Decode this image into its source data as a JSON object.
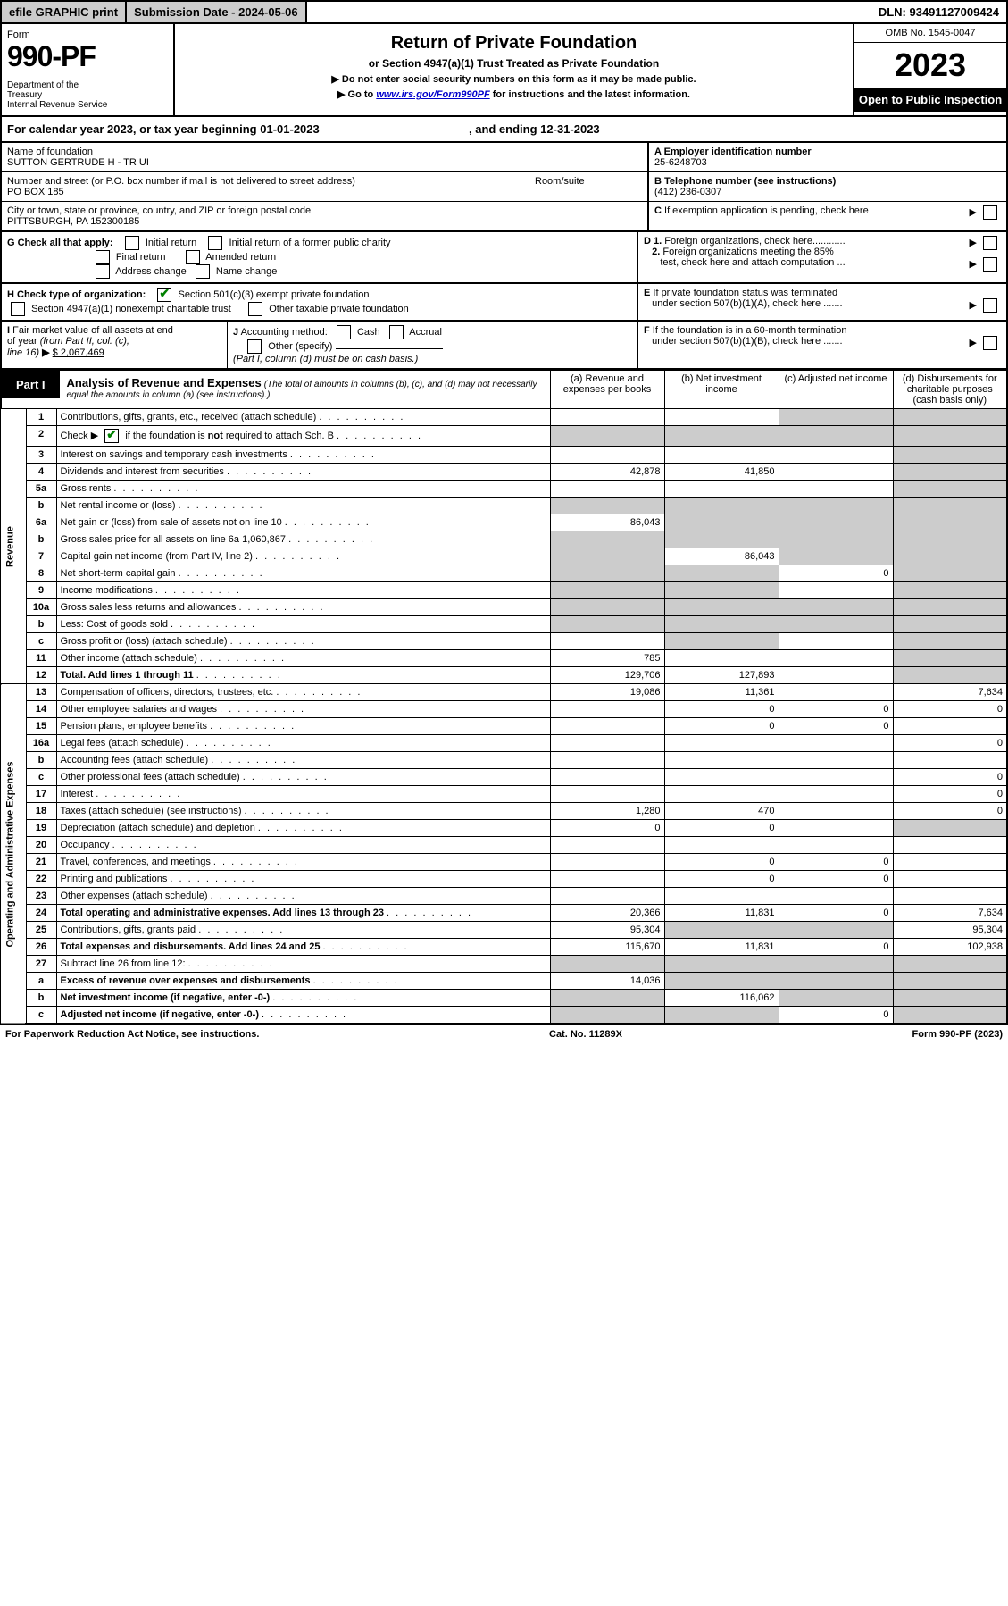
{
  "topbar": {
    "efile": "efile GRAPHIC print",
    "submission_label": "Submission Date - ",
    "submission_date": "2024-05-06",
    "dln_label": "DLN: ",
    "dln": "93491127009424"
  },
  "header": {
    "form_label": "Form",
    "form_number": "990-PF",
    "dept": "Department of the Treasury\nInternal Revenue Service",
    "title": "Return of Private Foundation",
    "subtitle": "or Section 4947(a)(1) Trust Treated as Private Foundation",
    "note1": "▶ Do not enter social security numbers on this form as it may be made public.",
    "note2_pre": "▶ Go to ",
    "note2_link": "www.irs.gov/Form990PF",
    "note2_post": " for instructions and the latest information.",
    "omb": "OMB No. 1545-0047",
    "year": "2023",
    "inspect": "Open to Public Inspection"
  },
  "calyear": {
    "text_a": "For calendar year 2023, or tax year beginning ",
    "begin": "01-01-2023",
    "text_b": ", and ending ",
    "end": "12-31-2023"
  },
  "info": {
    "name_label": "Name of foundation",
    "name": "SUTTON GERTRUDE H - TR UI",
    "ein_label": "A Employer identification number",
    "ein": "25-6248703",
    "addr_label": "Number and street (or P.O. box number if mail is not delivered to street address)",
    "room_label": "Room/suite",
    "addr": "PO BOX 185",
    "phone_label": "B Telephone number (see instructions)",
    "phone": "(412) 236-0307",
    "city_label": "City or town, state or province, country, and ZIP or foreign postal code",
    "city": "PITTSBURGH, PA  152300185",
    "c_label": "C If exemption application is pending, check here"
  },
  "sectionG": {
    "label": "G Check all that apply:",
    "opts": [
      "Initial return",
      "Initial return of a former public charity",
      "Final return",
      "Amended return",
      "Address change",
      "Name change"
    ]
  },
  "sectionD": {
    "d1": "D 1. Foreign organizations, check here............",
    "d2": "2. Foreign organizations meeting the 85% test, check here and attach computation ..."
  },
  "sectionH": {
    "label": "H Check type of organization:",
    "opt1": "Section 501(c)(3) exempt private foundation",
    "opt2": "Section 4947(a)(1) nonexempt charitable trust",
    "opt3": "Other taxable private foundation"
  },
  "sectionE": {
    "label": "E If private foundation status was terminated under section 507(b)(1)(A), check here ......."
  },
  "sectionI": {
    "label": "I Fair market value of all assets at end of year (from Part II, col. (c), line 16)",
    "arrow": "▶",
    "val": "$ 2,067,469"
  },
  "sectionJ": {
    "label": "J Accounting method:",
    "opt1": "Cash",
    "opt2": "Accrual",
    "opt3": "Other (specify)",
    "note": "(Part I, column (d) must be on cash basis.)"
  },
  "sectionF": {
    "label": "F If the foundation is in a 60-month termination under section 507(b)(1)(B), check here ......."
  },
  "part1": {
    "label": "Part I",
    "title": "Analysis of Revenue and Expenses",
    "note": "(The total of amounts in columns (b), (c), and (d) may not necessarily equal the amounts in column (a) (see instructions).)",
    "col_a": "(a) Revenue and expenses per books",
    "col_b": "(b) Net investment income",
    "col_c": "(c) Adjusted net income",
    "col_d": "(d) Disbursements for charitable purposes (cash basis only)"
  },
  "side_labels": {
    "revenue": "Revenue",
    "expenses": "Operating and Administrative Expenses"
  },
  "rows": [
    {
      "n": "1",
      "desc": "Contributions, gifts, grants, etc., received (attach schedule)",
      "a": "",
      "b": "",
      "c": "",
      "d": "",
      "dgrey": true,
      "cgrey": true
    },
    {
      "n": "2",
      "desc": "Check ▶ CHECKED if the foundation is not required to attach Sch. B",
      "a": "",
      "b": "",
      "c": "",
      "d": "",
      "bgrey": true,
      "cgrey": true,
      "dgrey": true,
      "agrey": true
    },
    {
      "n": "3",
      "desc": "Interest on savings and temporary cash investments",
      "a": "",
      "b": "",
      "c": "",
      "d": "",
      "dgrey": true
    },
    {
      "n": "4",
      "desc": "Dividends and interest from securities",
      "a": "42,878",
      "b": "41,850",
      "c": "",
      "d": "",
      "dgrey": true
    },
    {
      "n": "5a",
      "desc": "Gross rents",
      "a": "",
      "b": "",
      "c": "",
      "d": "",
      "dgrey": true
    },
    {
      "n": "b",
      "desc": "Net rental income or (loss)",
      "a": "",
      "b": "",
      "c": "",
      "d": "",
      "bgrey": true,
      "cgrey": true,
      "dgrey": true,
      "agrey": true
    },
    {
      "n": "6a",
      "desc": "Net gain or (loss) from sale of assets not on line 10",
      "a": "86,043",
      "b": "",
      "c": "",
      "d": "",
      "bgrey": true,
      "cgrey": true,
      "dgrey": true
    },
    {
      "n": "b",
      "desc": "Gross sales price for all assets on line 6a   1,060,867",
      "a": "",
      "b": "",
      "c": "",
      "d": "",
      "bgrey": true,
      "cgrey": true,
      "dgrey": true,
      "agrey": true
    },
    {
      "n": "7",
      "desc": "Capital gain net income (from Part IV, line 2)",
      "a": "",
      "b": "86,043",
      "c": "",
      "d": "",
      "agrey": true,
      "cgrey": true,
      "dgrey": true
    },
    {
      "n": "8",
      "desc": "Net short-term capital gain",
      "a": "",
      "b": "",
      "c": "0",
      "d": "",
      "agrey": true,
      "bgrey": true,
      "dgrey": true
    },
    {
      "n": "9",
      "desc": "Income modifications",
      "a": "",
      "b": "",
      "c": "",
      "d": "",
      "agrey": true,
      "bgrey": true,
      "dgrey": true
    },
    {
      "n": "10a",
      "desc": "Gross sales less returns and allowances",
      "a": "",
      "b": "",
      "c": "",
      "d": "",
      "bgrey": true,
      "cgrey": true,
      "dgrey": true,
      "agrey": true
    },
    {
      "n": "b",
      "desc": "Less: Cost of goods sold",
      "a": "",
      "b": "",
      "c": "",
      "d": "",
      "bgrey": true,
      "cgrey": true,
      "dgrey": true,
      "agrey": true
    },
    {
      "n": "c",
      "desc": "Gross profit or (loss) (attach schedule)",
      "a": "",
      "b": "",
      "c": "",
      "d": "",
      "bgrey": true,
      "dgrey": true
    },
    {
      "n": "11",
      "desc": "Other income (attach schedule)",
      "a": "785",
      "b": "",
      "c": "",
      "d": "",
      "dgrey": true
    },
    {
      "n": "12",
      "desc": "Total. Add lines 1 through 11",
      "a": "129,706",
      "b": "127,893",
      "c": "",
      "d": "",
      "bold": true,
      "dgrey": true
    },
    {
      "n": "13",
      "desc": "Compensation of officers, directors, trustees, etc.",
      "a": "19,086",
      "b": "11,361",
      "c": "",
      "d": "7,634"
    },
    {
      "n": "14",
      "desc": "Other employee salaries and wages",
      "a": "",
      "b": "0",
      "c": "0",
      "d": "0"
    },
    {
      "n": "15",
      "desc": "Pension plans, employee benefits",
      "a": "",
      "b": "0",
      "c": "0",
      "d": ""
    },
    {
      "n": "16a",
      "desc": "Legal fees (attach schedule)",
      "a": "",
      "b": "",
      "c": "",
      "d": "0"
    },
    {
      "n": "b",
      "desc": "Accounting fees (attach schedule)",
      "a": "",
      "b": "",
      "c": "",
      "d": ""
    },
    {
      "n": "c",
      "desc": "Other professional fees (attach schedule)",
      "a": "",
      "b": "",
      "c": "",
      "d": "0"
    },
    {
      "n": "17",
      "desc": "Interest",
      "a": "",
      "b": "",
      "c": "",
      "d": "0"
    },
    {
      "n": "18",
      "desc": "Taxes (attach schedule) (see instructions)",
      "a": "1,280",
      "b": "470",
      "c": "",
      "d": "0"
    },
    {
      "n": "19",
      "desc": "Depreciation (attach schedule) and depletion",
      "a": "0",
      "b": "0",
      "c": "",
      "d": "",
      "dgrey": true
    },
    {
      "n": "20",
      "desc": "Occupancy",
      "a": "",
      "b": "",
      "c": "",
      "d": ""
    },
    {
      "n": "21",
      "desc": "Travel, conferences, and meetings",
      "a": "",
      "b": "0",
      "c": "0",
      "d": ""
    },
    {
      "n": "22",
      "desc": "Printing and publications",
      "a": "",
      "b": "0",
      "c": "0",
      "d": ""
    },
    {
      "n": "23",
      "desc": "Other expenses (attach schedule)",
      "a": "",
      "b": "",
      "c": "",
      "d": ""
    },
    {
      "n": "24",
      "desc": "Total operating and administrative expenses. Add lines 13 through 23",
      "a": "20,366",
      "b": "11,831",
      "c": "0",
      "d": "7,634",
      "bold": true
    },
    {
      "n": "25",
      "desc": "Contributions, gifts, grants paid",
      "a": "95,304",
      "b": "",
      "c": "",
      "d": "95,304",
      "bgrey": true,
      "cgrey": true
    },
    {
      "n": "26",
      "desc": "Total expenses and disbursements. Add lines 24 and 25",
      "a": "115,670",
      "b": "11,831",
      "c": "0",
      "d": "102,938",
      "bold": true
    },
    {
      "n": "27",
      "desc": "Subtract line 26 from line 12:",
      "a": "",
      "b": "",
      "c": "",
      "d": "",
      "agrey": true,
      "bgrey": true,
      "cgrey": true,
      "dgrey": true
    },
    {
      "n": "a",
      "desc": "Excess of revenue over expenses and disbursements",
      "a": "14,036",
      "b": "",
      "c": "",
      "d": "",
      "bold": true,
      "bgrey": true,
      "cgrey": true,
      "dgrey": true
    },
    {
      "n": "b",
      "desc": "Net investment income (if negative, enter -0-)",
      "a": "",
      "b": "116,062",
      "c": "",
      "d": "",
      "bold": true,
      "agrey": true,
      "cgrey": true,
      "dgrey": true
    },
    {
      "n": "c",
      "desc": "Adjusted net income (if negative, enter -0-)",
      "a": "",
      "b": "",
      "c": "0",
      "d": "",
      "bold": true,
      "agrey": true,
      "bgrey": true,
      "dgrey": true
    }
  ],
  "footer": {
    "left": "For Paperwork Reduction Act Notice, see instructions.",
    "mid": "Cat. No. 11289X",
    "right": "Form 990-PF (2023)"
  }
}
